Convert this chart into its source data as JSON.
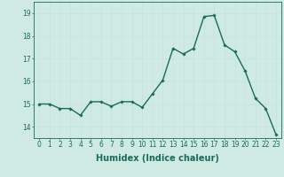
{
  "x": [
    0,
    1,
    2,
    3,
    4,
    5,
    6,
    7,
    8,
    9,
    10,
    11,
    12,
    13,
    14,
    15,
    16,
    17,
    18,
    19,
    20,
    21,
    22,
    23
  ],
  "y": [
    15.0,
    15.0,
    14.8,
    14.8,
    14.5,
    15.1,
    15.1,
    14.9,
    15.1,
    15.1,
    14.85,
    15.45,
    16.05,
    17.45,
    17.2,
    17.45,
    18.85,
    18.9,
    17.6,
    17.3,
    16.45,
    15.25,
    14.8,
    13.65
  ],
  "line_color": "#1a6b5a",
  "marker": "D",
  "marker_size": 1.8,
  "linewidth": 1.0,
  "xlabel": "Humidex (Indice chaleur)",
  "xlabel_fontsize": 7,
  "xlabel_bold": true,
  "ylim": [
    13.5,
    19.5
  ],
  "yticks": [
    14,
    15,
    16,
    17,
    18,
    19
  ],
  "xlim": [
    -0.5,
    23.5
  ],
  "xticks": [
    0,
    1,
    2,
    3,
    4,
    5,
    6,
    7,
    8,
    9,
    10,
    11,
    12,
    13,
    14,
    15,
    16,
    17,
    18,
    19,
    20,
    21,
    22,
    23
  ],
  "grid_color": "#c8e4dc",
  "background_color": "#ceeae3",
  "tick_fontsize": 5.5
}
